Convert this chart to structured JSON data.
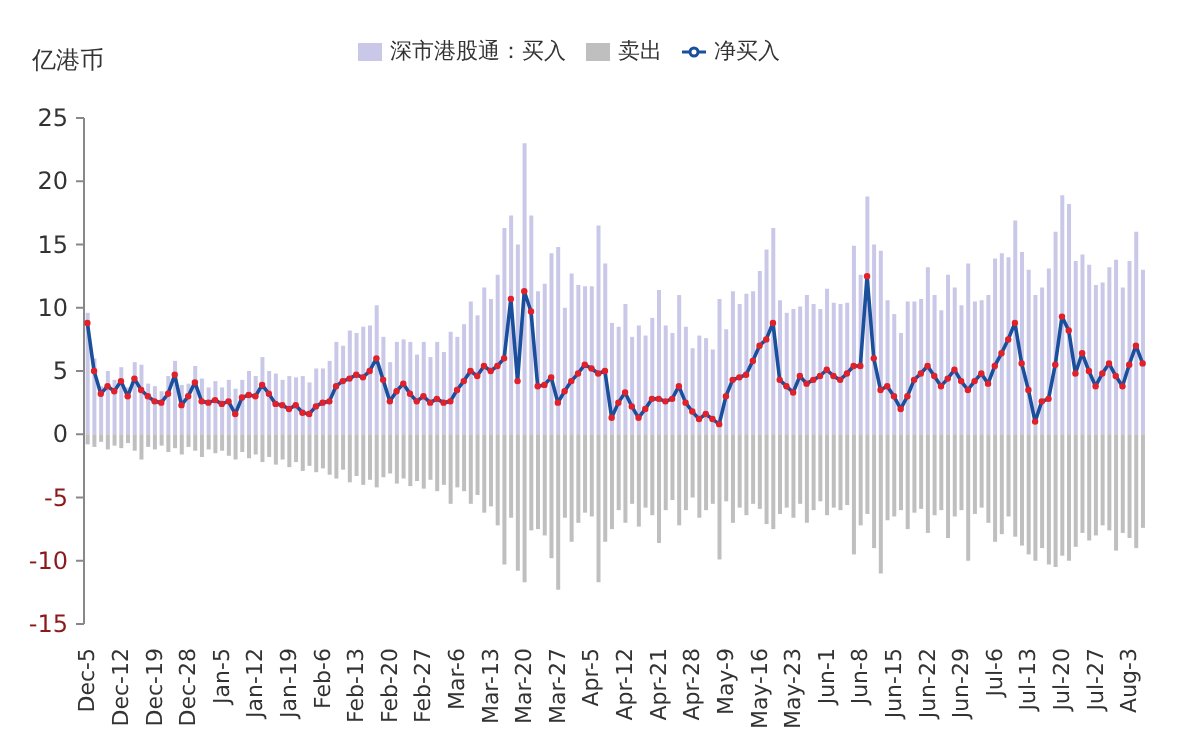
{
  "chart_data": {
    "type": "bar",
    "ylabel": "亿港币",
    "stacked": true,
    "legend": "top",
    "marker": "circle",
    "ylim": [
      -15,
      25
    ],
    "yticks": [
      -15,
      -10,
      -5,
      0,
      5,
      10,
      15,
      20,
      25
    ],
    "categories": [
      "Dec-5",
      null,
      null,
      null,
      null,
      "Dec-12",
      null,
      null,
      null,
      null,
      "Dec-19",
      null,
      null,
      null,
      null,
      "Dec-28",
      null,
      null,
      null,
      null,
      "Jan-5",
      null,
      null,
      null,
      null,
      "Jan-12",
      null,
      null,
      null,
      null,
      "Jan-19",
      null,
      null,
      null,
      null,
      "Feb-6",
      null,
      null,
      null,
      null,
      "Feb-13",
      null,
      null,
      null,
      null,
      "Feb-20",
      null,
      null,
      null,
      null,
      "Feb-27",
      null,
      null,
      null,
      null,
      "Mar-6",
      null,
      null,
      null,
      null,
      "Mar-13",
      null,
      null,
      null,
      null,
      "Mar-20",
      null,
      null,
      null,
      null,
      "Mar-27",
      null,
      null,
      null,
      null,
      "Apr-5",
      null,
      null,
      null,
      null,
      "Apr-12",
      null,
      null,
      null,
      null,
      "Apr-21",
      null,
      null,
      null,
      null,
      "Apr-28",
      null,
      null,
      null,
      null,
      "May-9",
      null,
      null,
      null,
      null,
      "May-16",
      null,
      null,
      null,
      null,
      "May-23",
      null,
      null,
      null,
      null,
      "Jun-1",
      null,
      null,
      null,
      null,
      "Jun-8",
      null,
      null,
      null,
      null,
      "Jun-15",
      null,
      null,
      null,
      null,
      "Jun-22",
      null,
      null,
      null,
      null,
      "Jun-29",
      null,
      null,
      null,
      null,
      "Jul-6",
      null,
      null,
      null,
      null,
      "Jul-13",
      null,
      null,
      null,
      null,
      "Jul-20",
      null,
      null,
      null,
      null,
      "Jul-27",
      null,
      null,
      null,
      null,
      "Aug-3",
      null,
      null
    ],
    "series": [
      {
        "name": "深市港股通：买入",
        "color": "#c9c8e8",
        "values": [
          9.6,
          6.0,
          3.8,
          5.0,
          4.3,
          5.3,
          3.7,
          5.7,
          5.5,
          4.0,
          3.8,
          3.4,
          4.6,
          5.8,
          3.9,
          4.0,
          5.4,
          4.4,
          3.7,
          4.2,
          3.7,
          4.3,
          3.6,
          4.3,
          5.0,
          4.6,
          6.1,
          5.0,
          4.8,
          4.3,
          4.6,
          4.5,
          4.6,
          4.1,
          5.2,
          5.2,
          5.8,
          7.3,
          7.0,
          8.2,
          8.0,
          8.5,
          8.6,
          10.2,
          7.7,
          5.7,
          7.3,
          7.5,
          7.3,
          6.3,
          7.3,
          6.1,
          7.3,
          6.5,
          8.1,
          7.7,
          8.7,
          10.5,
          9.4,
          11.6,
          10.7,
          12.6,
          16.3,
          17.3,
          15.0,
          23.0,
          17.3,
          11.3,
          11.9,
          14.3,
          14.8,
          10.0,
          12.7,
          11.8,
          11.7,
          11.7,
          16.5,
          13.5,
          8.8,
          8.5,
          10.3,
          7.7,
          8.6,
          7.8,
          9.2,
          11.4,
          8.6,
          8.0,
          11.0,
          8.5,
          6.8,
          7.8,
          7.6,
          6.7,
          10.7,
          8.3,
          11.3,
          10.3,
          11.1,
          11.3,
          12.9,
          14.6,
          16.3,
          10.6,
          9.6,
          9.9,
          10.1,
          11.0,
          10.3,
          9.9,
          11.5,
          10.4,
          10.3,
          10.4,
          14.9,
          12.6,
          18.8,
          15.0,
          14.5,
          10.6,
          9.5,
          8.0,
          10.5,
          10.5,
          10.7,
          13.2,
          11.0,
          9.8,
          12.6,
          11.6,
          10.2,
          13.5,
          10.5,
          10.6,
          11.0,
          13.9,
          14.3,
          14.0,
          16.9,
          14.4,
          13.0,
          11.0,
          11.6,
          13.1,
          16.0,
          18.9,
          18.2,
          13.7,
          14.2,
          13.4,
          11.8,
          12.0,
          13.2,
          13.8,
          11.6,
          13.7,
          16.0,
          13.0
        ]
      },
      {
        "name": "卖出",
        "color": "#bfbfbf",
        "values": [
          -0.8,
          -1.0,
          -0.6,
          -1.2,
          -0.9,
          -1.1,
          -0.7,
          -1.3,
          -2.0,
          -1.0,
          -1.2,
          -0.9,
          -1.4,
          -1.1,
          -1.6,
          -1.0,
          -1.3,
          -1.8,
          -1.2,
          -1.5,
          -1.3,
          -1.7,
          -2.0,
          -1.4,
          -1.9,
          -1.6,
          -2.2,
          -1.8,
          -2.4,
          -2.0,
          -2.6,
          -2.2,
          -2.9,
          -2.5,
          -3.0,
          -2.7,
          -3.2,
          -3.5,
          -2.8,
          -3.8,
          -3.3,
          -4.0,
          -3.6,
          -4.2,
          -3.4,
          -3.1,
          -3.9,
          -3.5,
          -4.1,
          -3.7,
          -4.3,
          -3.6,
          -4.5,
          -4.0,
          -5.5,
          -4.2,
          -4.5,
          -5.5,
          -4.8,
          -6.2,
          -5.7,
          -7.2,
          -10.3,
          -6.6,
          -10.8,
          -11.7,
          -7.6,
          -7.5,
          -8.0,
          -9.8,
          -12.3,
          -6.6,
          -8.5,
          -7.0,
          -6.2,
          -6.5,
          -11.7,
          -8.5,
          -7.5,
          -6.0,
          -7.0,
          -5.5,
          -7.3,
          -5.8,
          -6.4,
          -8.6,
          -6.0,
          -5.2,
          -7.2,
          -6.0,
          -5.0,
          -6.6,
          -6.0,
          -5.5,
          -9.9,
          -5.3,
          -7.0,
          -5.8,
          -6.4,
          -5.5,
          -5.9,
          -7.1,
          -7.5,
          -6.3,
          -5.8,
          -6.6,
          -5.5,
          -7.0,
          -6.0,
          -5.3,
          -6.4,
          -5.8,
          -6.0,
          -5.6,
          -9.5,
          -7.2,
          -6.3,
          -9.0,
          -11.0,
          -6.8,
          -6.5,
          -6.0,
          -7.5,
          -6.2,
          -5.9,
          -7.8,
          -6.4,
          -6.0,
          -8.2,
          -6.5,
          -6.0,
          -10.0,
          -6.3,
          -5.8,
          -7.0,
          -8.5,
          -7.9,
          -6.5,
          -8.1,
          -8.8,
          -9.5,
          -10.0,
          -9.0,
          -10.3,
          -10.5,
          -9.6,
          -10.0,
          -8.9,
          -7.8,
          -8.4,
          -8.0,
          -7.2,
          -7.6,
          -9.2,
          -7.8,
          -8.2,
          -9.0,
          -7.4
        ]
      },
      {
        "name": "净买入",
        "type": "line",
        "color": "#1a4f9c",
        "values": [
          8.8,
          5.0,
          3.2,
          3.8,
          3.4,
          4.2,
          3.0,
          4.4,
          3.5,
          3.0,
          2.6,
          2.5,
          3.2,
          4.7,
          2.3,
          3.0,
          4.1,
          2.6,
          2.5,
          2.7,
          2.4,
          2.6,
          1.6,
          2.9,
          3.1,
          3.0,
          3.9,
          3.2,
          2.4,
          2.3,
          2.0,
          2.3,
          1.7,
          1.6,
          2.2,
          2.5,
          2.6,
          3.8,
          4.2,
          4.4,
          4.7,
          4.5,
          5.0,
          6.0,
          4.3,
          2.6,
          3.4,
          4.0,
          3.2,
          2.6,
          3.0,
          2.5,
          2.8,
          2.5,
          2.6,
          3.5,
          4.2,
          5.0,
          4.6,
          5.4,
          5.0,
          5.4,
          6.0,
          10.7,
          4.2,
          11.3,
          9.7,
          3.8,
          3.9,
          4.5,
          2.5,
          3.4,
          4.2,
          4.8,
          5.5,
          5.2,
          4.8,
          5.0,
          1.3,
          2.5,
          3.3,
          2.2,
          1.3,
          2.0,
          2.8,
          2.8,
          2.6,
          2.8,
          3.8,
          2.5,
          1.8,
          1.2,
          1.6,
          1.2,
          0.8,
          3.0,
          4.3,
          4.5,
          4.7,
          5.8,
          7.0,
          7.5,
          8.8,
          4.3,
          3.8,
          3.3,
          4.6,
          4.0,
          4.3,
          4.6,
          5.1,
          4.6,
          4.3,
          4.8,
          5.4,
          5.4,
          12.5,
          6.0,
          3.5,
          3.8,
          3.0,
          2.0,
          3.0,
          4.3,
          4.8,
          5.4,
          4.6,
          3.8,
          4.4,
          5.1,
          4.2,
          3.5,
          4.2,
          4.8,
          4.0,
          5.4,
          6.4,
          7.5,
          8.8,
          5.6,
          3.5,
          1.0,
          2.6,
          2.8,
          5.5,
          9.3,
          8.2,
          4.8,
          6.4,
          5.0,
          3.8,
          4.8,
          5.6,
          4.6,
          3.8,
          5.5,
          7.0,
          5.6
        ]
      }
    ]
  }
}
